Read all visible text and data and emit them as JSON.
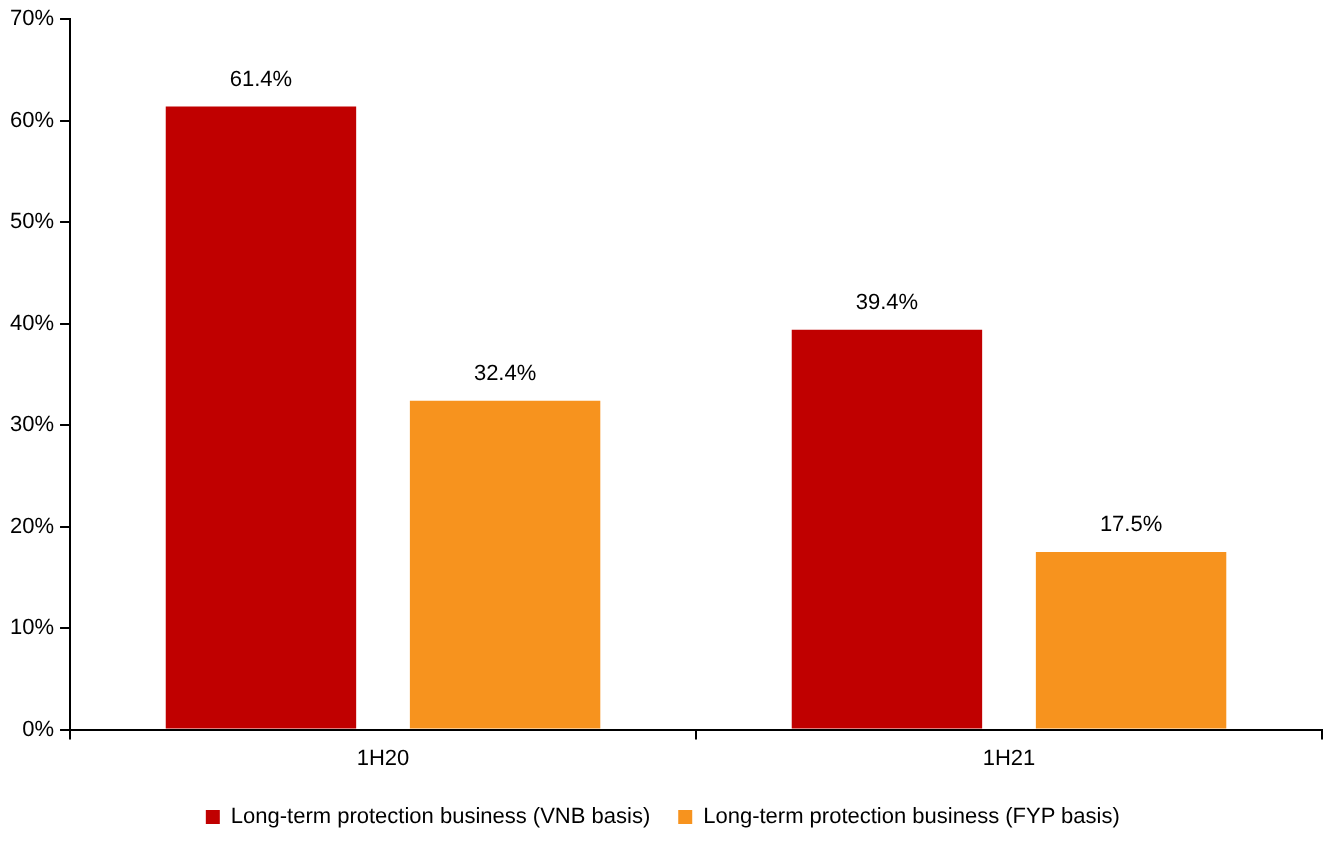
{
  "chart_data": {
    "type": "bar",
    "categories": [
      "1H20",
      "1H21"
    ],
    "series": [
      {
        "name": "Long-term protection business (VNB basis)",
        "color": "#c00000",
        "values": [
          61.4,
          39.4
        ],
        "value_labels": [
          "61.4%",
          "39.4%"
        ]
      },
      {
        "name": "Long-term protection business (FYP basis)",
        "color": "#f7931e",
        "values": [
          32.4,
          17.5
        ],
        "value_labels": [
          "32.4%",
          "17.5%"
        ]
      }
    ],
    "ylim": [
      0,
      70
    ],
    "yticks": [
      {
        "value": 0,
        "label": "0%"
      },
      {
        "value": 10,
        "label": "10%"
      },
      {
        "value": 20,
        "label": "20%"
      },
      {
        "value": 30,
        "label": "30%"
      },
      {
        "value": 40,
        "label": "40%"
      },
      {
        "value": 50,
        "label": "50%"
      },
      {
        "value": 60,
        "label": "60%"
      },
      {
        "value": 70,
        "label": "70%"
      }
    ],
    "grid": false,
    "legend": "bottom"
  }
}
